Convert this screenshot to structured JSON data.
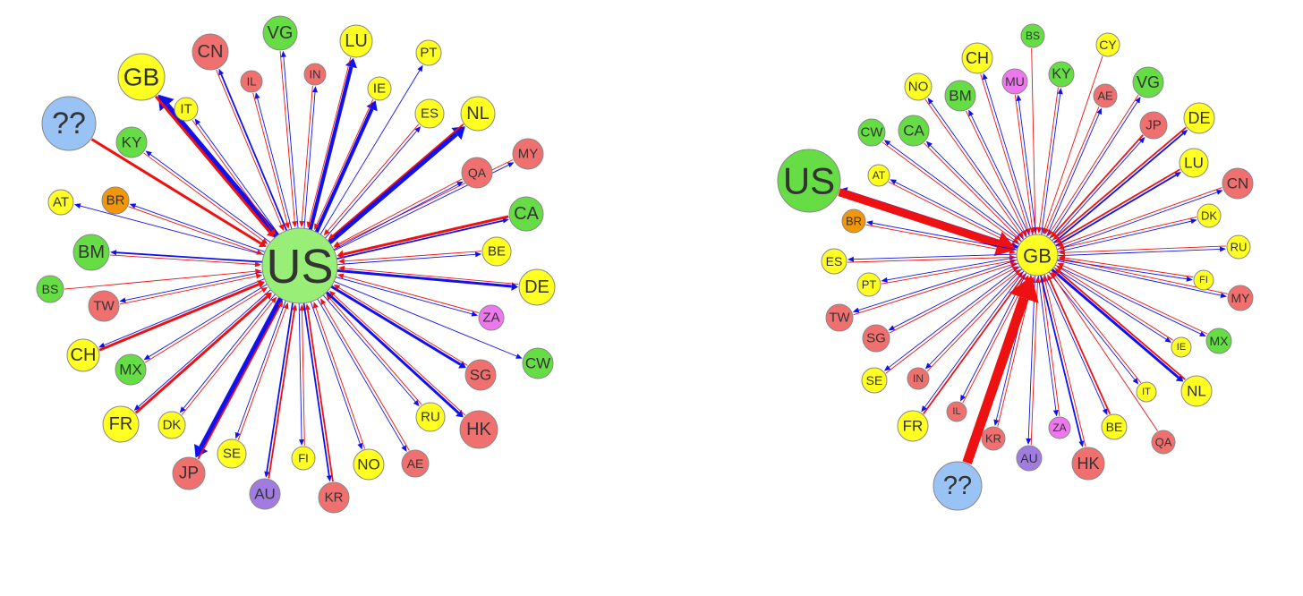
{
  "colors": {
    "yellow": "#ffff22",
    "green": "#66dd44",
    "green_light": "#99ee77",
    "red": "#f07070",
    "orange": "#f2960a",
    "purple": "#a07ce0",
    "magenta": "#ee77ee",
    "blue_light": "#99c2f5",
    "edge_out": "#1111ee",
    "edge_in": "#ee1111",
    "stroke": "#888888",
    "label": "#333333"
  },
  "networks": [
    {
      "id": "us",
      "hub": {
        "label": "US",
        "color": "green_light"
      },
      "nodes": [
        {
          "label": "CN",
          "color": "red",
          "w_out": 2,
          "w_in": 1
        },
        {
          "label": "VG",
          "color": "green",
          "w_out": 1,
          "w_in": 1
        },
        {
          "label": "LU",
          "color": "yellow",
          "w_out": 4,
          "w_in": 1
        },
        {
          "label": "PT",
          "color": "yellow",
          "w_out": 1,
          "w_in": 0
        },
        {
          "label": "IL",
          "color": "red",
          "w_out": 1,
          "w_in": 1
        },
        {
          "label": "IN",
          "color": "red",
          "w_out": 1,
          "w_in": 1
        },
        {
          "label": "IE",
          "color": "yellow",
          "w_out": 4,
          "w_in": 1
        },
        {
          "label": "GB",
          "color": "yellow",
          "w_out": 6,
          "w_in": 3
        },
        {
          "label": "IT",
          "color": "yellow",
          "w_out": 1,
          "w_in": 1
        },
        {
          "label": "ES",
          "color": "yellow",
          "w_out": 1,
          "w_in": 1
        },
        {
          "label": "NL",
          "color": "yellow",
          "w_out": 5,
          "w_in": 2
        },
        {
          "label": "??",
          "color": "blue_light",
          "w_out": 0,
          "w_in": 3
        },
        {
          "label": "KY",
          "color": "green",
          "w_out": 1,
          "w_in": 1
        },
        {
          "label": "MY",
          "color": "red",
          "w_out": 1,
          "w_in": 1
        },
        {
          "label": "QA",
          "color": "red",
          "w_out": 1,
          "w_in": 1
        },
        {
          "label": "AT",
          "color": "yellow",
          "w_out": 1,
          "w_in": 0
        },
        {
          "label": "BR",
          "color": "orange",
          "w_out": 1,
          "w_in": 1
        },
        {
          "label": "CA",
          "color": "green",
          "w_out": 2,
          "w_in": 3
        },
        {
          "label": "BE",
          "color": "yellow",
          "w_out": 1,
          "w_in": 1
        },
        {
          "label": "BM",
          "color": "green",
          "w_out": 2,
          "w_in": 1
        },
        {
          "label": "BS",
          "color": "green",
          "w_out": 0,
          "w_in": 1
        },
        {
          "label": "DE",
          "color": "yellow",
          "w_out": 3,
          "w_in": 1
        },
        {
          "label": "TW",
          "color": "red",
          "w_out": 1,
          "w_in": 1
        },
        {
          "label": "ZA",
          "color": "magenta",
          "w_out": 1,
          "w_in": 1
        },
        {
          "label": "CH",
          "color": "yellow",
          "w_out": 1,
          "w_in": 3
        },
        {
          "label": "MX",
          "color": "green",
          "w_out": 1,
          "w_in": 1
        },
        {
          "label": "CW",
          "color": "green",
          "w_out": 1,
          "w_in": 0
        },
        {
          "label": "SG",
          "color": "red",
          "w_out": 3,
          "w_in": 1
        },
        {
          "label": "FR",
          "color": "yellow",
          "w_out": 1,
          "w_in": 3
        },
        {
          "label": "DK",
          "color": "yellow",
          "w_out": 1,
          "w_in": 1
        },
        {
          "label": "RU",
          "color": "yellow",
          "w_out": 1,
          "w_in": 1
        },
        {
          "label": "HK",
          "color": "red",
          "w_out": 3,
          "w_in": 1
        },
        {
          "label": "JP",
          "color": "red",
          "w_out": 5,
          "w_in": 2
        },
        {
          "label": "SE",
          "color": "yellow",
          "w_out": 1,
          "w_in": 1
        },
        {
          "label": "FI",
          "color": "yellow",
          "w_out": 1,
          "w_in": 1
        },
        {
          "label": "NO",
          "color": "yellow",
          "w_out": 1,
          "w_in": 1
        },
        {
          "label": "AE",
          "color": "red",
          "w_out": 1,
          "w_in": 1
        },
        {
          "label": "AU",
          "color": "purple",
          "w_out": 2,
          "w_in": 2
        },
        {
          "label": "KR",
          "color": "red",
          "w_out": 2,
          "w_in": 2
        }
      ]
    },
    {
      "id": "gb",
      "hub": {
        "label": "GB",
        "color": "yellow"
      },
      "nodes": [
        {
          "label": "BS",
          "color": "green",
          "w_out": 0,
          "w_in": 1
        },
        {
          "label": "CY",
          "color": "yellow",
          "w_out": 0,
          "w_in": 1
        },
        {
          "label": "CH",
          "color": "yellow",
          "w_out": 1,
          "w_in": 1
        },
        {
          "label": "KY",
          "color": "green",
          "w_out": 1,
          "w_in": 1
        },
        {
          "label": "VG",
          "color": "green",
          "w_out": 1,
          "w_in": 1
        },
        {
          "label": "NO",
          "color": "yellow",
          "w_out": 1,
          "w_in": 1
        },
        {
          "label": "MU",
          "color": "magenta",
          "w_out": 1,
          "w_in": 1
        },
        {
          "label": "BM",
          "color": "green",
          "w_out": 1,
          "w_in": 1
        },
        {
          "label": "AE",
          "color": "red",
          "w_out": 1,
          "w_in": 1
        },
        {
          "label": "JP",
          "color": "red",
          "w_out": 1,
          "w_in": 2
        },
        {
          "label": "DE",
          "color": "yellow",
          "w_out": 2,
          "w_in": 2
        },
        {
          "label": "CW",
          "color": "green",
          "w_out": 1,
          "w_in": 1
        },
        {
          "label": "CA",
          "color": "green",
          "w_out": 1,
          "w_in": 1
        },
        {
          "label": "LU",
          "color": "yellow",
          "w_out": 2,
          "w_in": 2
        },
        {
          "label": "AT",
          "color": "yellow",
          "w_out": 1,
          "w_in": 1
        },
        {
          "label": "US",
          "color": "green",
          "w_out": 3,
          "w_in": 7
        },
        {
          "label": "CN",
          "color": "red",
          "w_out": 1,
          "w_in": 1
        },
        {
          "label": "DK",
          "color": "yellow",
          "w_out": 1,
          "w_in": 1
        },
        {
          "label": "BR",
          "color": "orange",
          "w_out": 1,
          "w_in": 1
        },
        {
          "label": "RU",
          "color": "yellow",
          "w_out": 1,
          "w_in": 1
        },
        {
          "label": "ES",
          "color": "yellow",
          "w_out": 1,
          "w_in": 1
        },
        {
          "label": "PT",
          "color": "yellow",
          "w_out": 1,
          "w_in": 1
        },
        {
          "label": "FI",
          "color": "yellow",
          "w_out": 1,
          "w_in": 1
        },
        {
          "label": "MY",
          "color": "red",
          "w_out": 1,
          "w_in": 1
        },
        {
          "label": "TW",
          "color": "red",
          "w_out": 1,
          "w_in": 1
        },
        {
          "label": "SG",
          "color": "red",
          "w_out": 1,
          "w_in": 1
        },
        {
          "label": "MX",
          "color": "green",
          "w_out": 1,
          "w_in": 1
        },
        {
          "label": "IE",
          "color": "yellow",
          "w_out": 1,
          "w_in": 1
        },
        {
          "label": "IN",
          "color": "red",
          "w_out": 1,
          "w_in": 1
        },
        {
          "label": "SE",
          "color": "yellow",
          "w_out": 1,
          "w_in": 1
        },
        {
          "label": "NL",
          "color": "yellow",
          "w_out": 3,
          "w_in": 2
        },
        {
          "label": "IT",
          "color": "yellow",
          "w_out": 1,
          "w_in": 1
        },
        {
          "label": "FR",
          "color": "yellow",
          "w_out": 1,
          "w_in": 2
        },
        {
          "label": "IL",
          "color": "red",
          "w_out": 1,
          "w_in": 1
        },
        {
          "label": "KR",
          "color": "red",
          "w_out": 1,
          "w_in": 1
        },
        {
          "label": "ZA",
          "color": "magenta",
          "w_out": 1,
          "w_in": 1
        },
        {
          "label": "BE",
          "color": "yellow",
          "w_out": 1,
          "w_in": 2
        },
        {
          "label": "QA",
          "color": "red",
          "w_out": 0,
          "w_in": 1
        },
        {
          "label": "AU",
          "color": "purple",
          "w_out": 1,
          "w_in": 1
        },
        {
          "label": "HK",
          "color": "red",
          "w_out": 2,
          "w_in": 1
        },
        {
          "label": "??",
          "color": "blue_light",
          "w_out": 0,
          "w_in": 8
        }
      ]
    }
  ]
}
